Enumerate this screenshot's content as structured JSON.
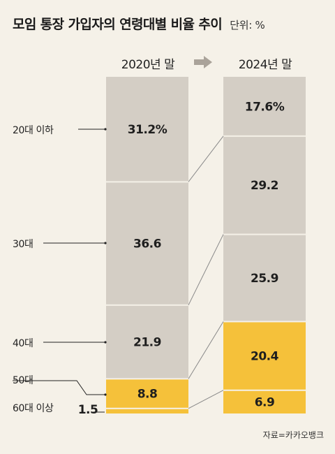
{
  "title": "모임 통장 가입자의 연령대별 비율 추이",
  "unit": "단위: %",
  "source": "자료=카카오뱅크",
  "colors": {
    "gray": "#d4cec5",
    "yellow": "#f5c13a",
    "connector": "#888888",
    "background": "#f5f1e8"
  },
  "chart_data": {
    "type": "bar",
    "stacked": true,
    "categories": [
      "2020년 말",
      "2024년 말"
    ],
    "series": [
      {
        "name": "20대 이하",
        "values": [
          31.2,
          17.6
        ],
        "color": "#d4cec5"
      },
      {
        "name": "30대",
        "values": [
          36.6,
          29.2
        ],
        "color": "#d4cec5"
      },
      {
        "name": "40대",
        "values": [
          21.9,
          25.9
        ],
        "color": "#d4cec5"
      },
      {
        "name": "50대",
        "values": [
          8.8,
          20.4
        ],
        "color": "#f5c13a"
      },
      {
        "name": "60대 이상",
        "values": [
          1.5,
          6.9
        ],
        "color": "#f5c13a"
      }
    ],
    "labels": [
      [
        "31.2%",
        "36.6",
        "21.9",
        "8.8",
        "1.5"
      ],
      [
        "17.6%",
        "29.2",
        "25.9",
        "20.4",
        "6.9"
      ]
    ]
  }
}
